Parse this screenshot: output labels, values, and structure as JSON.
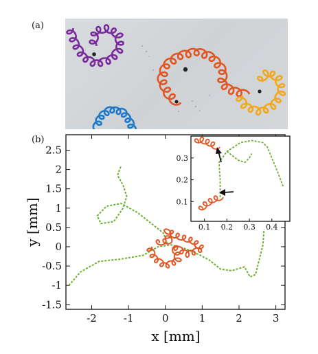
{
  "panels": {
    "a_label": "(a)",
    "b_label": "(b)"
  },
  "colors": {
    "purple": "#7a2a9c",
    "orange": "#e05522",
    "yellow": "#f2a81c",
    "blue": "#1f78c8",
    "green": "#6bb02e"
  },
  "chart_data": {
    "type": "line",
    "xlabel": "x [mm]",
    "ylabel": "y [mm]",
    "xlim": [
      -2.7,
      3.25
    ],
    "ylim": [
      -1.62,
      2.9
    ],
    "xticks": [
      -2,
      -1,
      0,
      1,
      2,
      3
    ],
    "yticks": [
      -1.5,
      -1,
      -0.5,
      0,
      0.5,
      1,
      1.5,
      2,
      2.5
    ],
    "series": [
      {
        "color": "#6bb02e",
        "style": "dashed",
        "points": [
          [
            -2.62,
            -1.0
          ],
          [
            -2.3,
            -0.65
          ],
          [
            -1.8,
            -0.38
          ],
          [
            -1.2,
            -0.32
          ],
          [
            -0.6,
            -0.22
          ],
          [
            -0.2,
            0.0
          ],
          [
            0.15,
            0.05
          ],
          [
            0.55,
            -0.05
          ],
          [
            0.95,
            -0.22
          ],
          [
            1.2,
            -0.35
          ],
          [
            1.5,
            -0.58
          ],
          [
            1.8,
            -0.62
          ],
          [
            2.15,
            -0.52
          ],
          [
            2.3,
            -0.78
          ],
          [
            2.45,
            -0.72
          ],
          [
            2.65,
            0.05
          ],
          [
            2.68,
            0.45
          ]
        ]
      },
      {
        "color": "#6bb02e",
        "style": "dashed",
        "points": [
          [
            0.05,
            0.08
          ],
          [
            -0.05,
            0.35
          ],
          [
            -0.35,
            0.58
          ],
          [
            -0.75,
            0.88
          ],
          [
            -1.2,
            1.12
          ],
          [
            -1.6,
            1.05
          ],
          [
            -1.85,
            0.8
          ],
          [
            -1.75,
            0.6
          ],
          [
            -1.4,
            0.65
          ],
          [
            -1.15,
            1.0
          ],
          [
            -1.05,
            1.3
          ],
          [
            -1.15,
            1.6
          ],
          [
            -1.3,
            1.85
          ],
          [
            -1.2,
            2.1
          ]
        ]
      },
      {
        "color": "#e05522",
        "style": "loops",
        "points": [
          [
            -0.45,
            0.0
          ],
          [
            -0.3,
            -0.3
          ],
          [
            0.0,
            -0.5
          ],
          [
            0.35,
            -0.35
          ],
          [
            0.25,
            0.0
          ],
          [
            0.6,
            -0.2
          ],
          [
            1.0,
            -0.05
          ],
          [
            0.75,
            0.15
          ],
          [
            0.25,
            0.3
          ],
          [
            0.05,
            0.42
          ],
          [
            0.1,
            0.15
          ],
          [
            -0.25,
            0.1
          ]
        ]
      }
    ],
    "inset": {
      "xlim": [
        0.04,
        0.48
      ],
      "ylim": [
        0.01,
        0.4
      ],
      "xticks": [
        0.1,
        0.2,
        0.3,
        0.4
      ],
      "yticks": [
        0.1,
        0.2,
        0.3
      ],
      "series": [
        {
          "color": "#6bb02e",
          "style": "dashed",
          "points": [
            [
              0.17,
              0.12
            ],
            [
              0.17,
              0.2
            ],
            [
              0.165,
              0.28
            ],
            [
              0.2,
              0.33
            ],
            [
              0.26,
              0.37
            ],
            [
              0.31,
              0.38
            ],
            [
              0.36,
              0.37
            ],
            [
              0.38,
              0.35
            ],
            [
              0.4,
              0.3
            ],
            [
              0.42,
              0.25
            ],
            [
              0.45,
              0.17
            ]
          ]
        },
        {
          "color": "#6bb02e",
          "style": "dashed",
          "points": [
            [
              0.2,
              0.33
            ],
            [
              0.25,
              0.29
            ],
            [
              0.28,
              0.28
            ],
            [
              0.3,
              0.3
            ],
            [
              0.31,
              0.32
            ]
          ]
        },
        {
          "color": "#e05522",
          "style": "loops",
          "points": [
            [
              0.17,
              0.12
            ],
            [
              0.14,
              0.11
            ],
            [
              0.1,
              0.085
            ],
            [
              0.08,
              0.06
            ]
          ]
        },
        {
          "color": "#e05522",
          "style": "loops",
          "points": [
            [
              0.155,
              0.35
            ],
            [
              0.12,
              0.37
            ],
            [
              0.08,
              0.385
            ],
            [
              0.06,
              0.37
            ]
          ]
        }
      ]
    }
  }
}
